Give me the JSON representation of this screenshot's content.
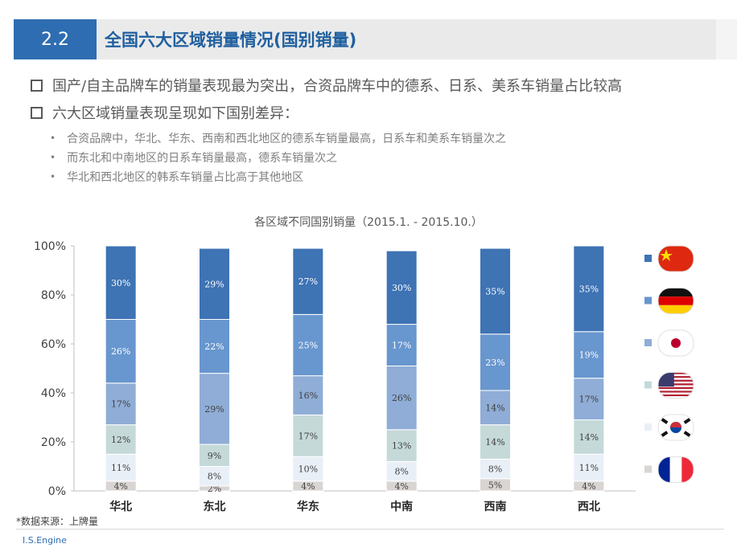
{
  "header": {
    "section_number": "2.2",
    "title": "全国六大区域销量情况(国别销量)"
  },
  "bullets": [
    {
      "text": "国产/自主品牌车的销量表现最为突出，合资品牌车中的德系、日系、美系车销量占比较高",
      "sub": []
    },
    {
      "text": "六大区域销量表现呈现如下国别差异：",
      "sub": [
        "合资品牌中，华北、华东、西南和西北地区的德系车销量最高，日系车和美系车销量次之",
        "而东北和中南地区的日系车销量最高，德系车销量次之",
        "华北和西北地区的韩系车销量占比高于其他地区"
      ]
    }
  ],
  "chart_data": {
    "type": "bar",
    "stacked": true,
    "title": "各区域不同国别销量（2015.1. - 2015.10.）",
    "categories": [
      "华北",
      "东北",
      "华东",
      "中南",
      "西南",
      "西北"
    ],
    "y_ticks": [
      "0%",
      "20%",
      "40%",
      "60%",
      "80%",
      "100%"
    ],
    "ylim": [
      0,
      100
    ],
    "series": [
      {
        "name": "france",
        "flag_icon": "france-flag-icon",
        "color": "#d9d5d3",
        "values": [
          4,
          2,
          4,
          4,
          5,
          4
        ],
        "labels": [
          "4%",
          "2%",
          "4%",
          "4%",
          "5%",
          "4%"
        ]
      },
      {
        "name": "korea",
        "flag_icon": "korea-flag-icon",
        "color": "#e9eff7",
        "values": [
          11,
          8,
          10,
          8,
          8,
          11
        ],
        "labels": [
          "11%",
          "8%",
          "10%",
          "8%",
          "8%",
          "11%"
        ]
      },
      {
        "name": "usa",
        "flag_icon": "usa-flag-icon",
        "color": "#c5d9d9",
        "values": [
          12,
          9,
          17,
          13,
          14,
          14
        ],
        "labels": [
          "12%",
          "9%",
          "17%",
          "13%",
          "14%",
          "14%"
        ]
      },
      {
        "name": "japan",
        "flag_icon": "japan-flag-icon",
        "color": "#8fadd6",
        "values": [
          17,
          29,
          16,
          26,
          14,
          17
        ],
        "labels": [
          "17%",
          "29%",
          "16%",
          "26%",
          "14%",
          "17%"
        ]
      },
      {
        "name": "germany",
        "flag_icon": "germany-flag-icon",
        "color": "#6896ce",
        "values": [
          26,
          22,
          25,
          17,
          23,
          19
        ],
        "labels": [
          "26%",
          "22%",
          "25%",
          "17%",
          "23%",
          "19%"
        ]
      },
      {
        "name": "china",
        "flag_icon": "china-flag-icon",
        "color": "#3e73b4",
        "values": [
          30,
          29,
          27,
          30,
          35,
          35
        ],
        "labels": [
          "30%",
          "29%",
          "27%",
          "30%",
          "35%",
          "35%"
        ]
      }
    ]
  },
  "footer": {
    "note": "*数据来源：上牌量",
    "brand": "I.S.Engine"
  }
}
